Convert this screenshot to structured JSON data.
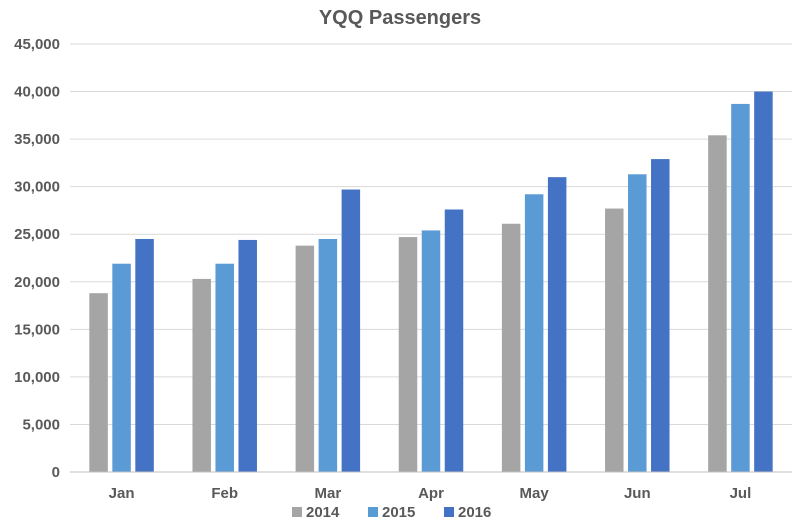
{
  "chart_data": {
    "type": "bar",
    "title": "YQQ Passengers",
    "xlabel": "",
    "ylabel": "",
    "categories": [
      "Jan",
      "Feb",
      "Mar",
      "Apr",
      "May",
      "Jun",
      "Jul"
    ],
    "series": [
      {
        "name": "2014",
        "color": "#a5a5a5",
        "values": [
          18800,
          20300,
          23800,
          24700,
          26100,
          27700,
          35400
        ]
      },
      {
        "name": "2015",
        "color": "#5b9bd5",
        "values": [
          21900,
          21900,
          24500,
          25400,
          29200,
          31300,
          38700
        ]
      },
      {
        "name": "2016",
        "color": "#4472c4",
        "values": [
          24500,
          24400,
          29700,
          27600,
          31000,
          32900,
          40000
        ]
      }
    ],
    "ylim": [
      0,
      45000
    ],
    "yticks": [
      0,
      5000,
      10000,
      15000,
      20000,
      25000,
      30000,
      35000,
      40000,
      45000
    ],
    "ytick_labels": [
      "0",
      "5,000",
      "10,000",
      "15,000",
      "20,000",
      "25,000",
      "30,000",
      "35,000",
      "40,000",
      "45,000"
    ],
    "grid": true,
    "legend_position": "bottom"
  }
}
